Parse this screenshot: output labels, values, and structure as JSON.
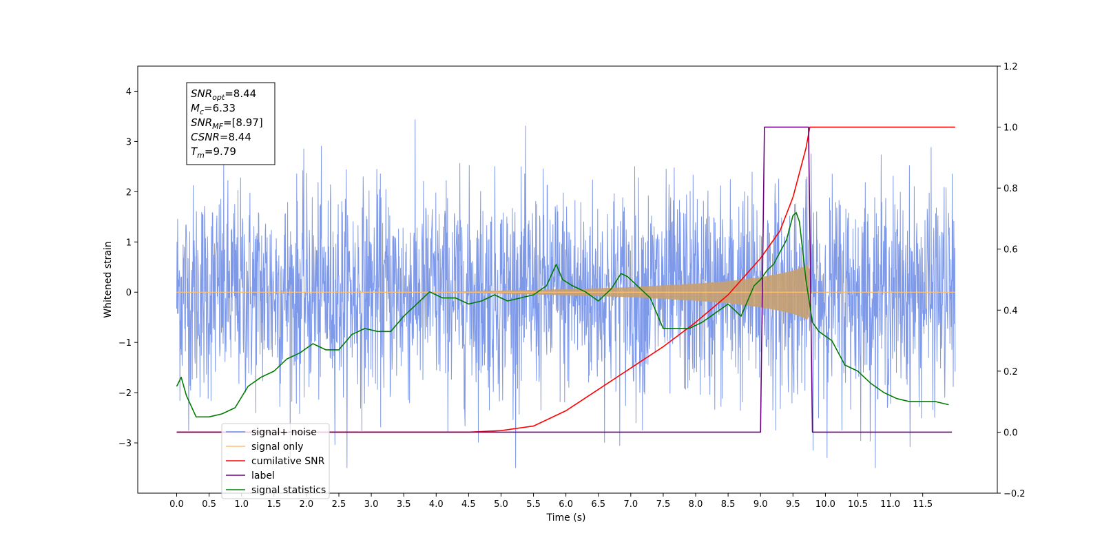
{
  "chart_data": {
    "type": "line",
    "xlabel": "Time (s)",
    "ylabel": "Whitened strain",
    "x_tick_labels": [
      "0.0",
      "0.5",
      "1.0",
      "1.5",
      "2.0",
      "2.5",
      "3.0",
      "3.5",
      "4.0",
      "4.5",
      "5.0",
      "5.5",
      "6.0",
      "6.5",
      "7.0",
      "7.5",
      "8.0",
      "8.5",
      "9.0",
      "9.5",
      "10.0",
      "10.5",
      "11.0",
      "11.5"
    ],
    "y_left_tick_labels": [
      "−3",
      "−2",
      "−1",
      "0",
      "1",
      "2",
      "3",
      "4"
    ],
    "y_right_tick_labels": [
      "−0.2",
      "0.0",
      "0.2",
      "0.4",
      "0.6",
      "0.8",
      "1.0",
      "1.2"
    ],
    "xlim": [
      -0.6,
      12.65
    ],
    "ylim_left": [
      -4.0,
      4.5
    ],
    "ylim_right": [
      -0.2,
      1.2
    ],
    "info_box": [
      {
        "main": "SNR",
        "sub": "opt",
        "value": "=8.44"
      },
      {
        "main": "M",
        "sub": "c",
        "value": "=6.33"
      },
      {
        "main": "SNR",
        "sub": "MF",
        "value": "=[8.97]"
      },
      {
        "main": "CSNR",
        "sub": "",
        "value": "=8.44"
      },
      {
        "main": "T",
        "sub": "m",
        "value": "=9.79"
      }
    ],
    "legend_placement": "lower-left",
    "legend": [
      {
        "name": "signal+ noise",
        "color": "#6f8ee6"
      },
      {
        "name": "signal only",
        "color": "#ffbf70"
      },
      {
        "name": "cumilative SNR",
        "color": "#ff0000"
      },
      {
        "name": "label",
        "color": "#6a0080"
      },
      {
        "name": "signal statistics",
        "color": "#008000"
      }
    ],
    "series": [
      {
        "name": "signal+ noise",
        "axis": "left",
        "color": "#7893e8",
        "x_range": [
          0.0,
          12.0
        ],
        "envelope_y": [
          -3.5,
          4.1
        ],
        "max_value": 4.1,
        "min_value": -3.5
      },
      {
        "name": "signal only",
        "axis": "left",
        "color": "#c8a070",
        "x": [
          0.0,
          2.0,
          4.0,
          5.0,
          6.0,
          7.0,
          8.0,
          8.5,
          9.0,
          9.3,
          9.5,
          9.65,
          9.72,
          9.76,
          9.78,
          12.0
        ],
        "amplitude": [
          0.0,
          0.002,
          0.01,
          0.03,
          0.06,
          0.1,
          0.17,
          0.22,
          0.3,
          0.37,
          0.43,
          0.5,
          0.55,
          0.45,
          0.0,
          0.0
        ]
      },
      {
        "name": "cumilative SNR",
        "axis": "right",
        "color": "#ff0000",
        "x": [
          0.0,
          4.5,
          5.0,
          5.5,
          6.0,
          6.5,
          7.0,
          7.5,
          8.0,
          8.5,
          9.0,
          9.3,
          9.5,
          9.7,
          9.76,
          9.8,
          12.0
        ],
        "values": [
          0.0,
          0.0,
          0.005,
          0.02,
          0.07,
          0.14,
          0.21,
          0.28,
          0.36,
          0.45,
          0.57,
          0.66,
          0.77,
          0.93,
          1.0,
          1.0,
          1.0
        ]
      },
      {
        "name": "label",
        "axis": "right",
        "color": "#6a0080",
        "x": [
          0.0,
          9.0,
          9.06,
          9.74,
          9.8,
          11.95
        ],
        "values": [
          0.0,
          0.0,
          1.0,
          1.0,
          0.0,
          0.0
        ]
      },
      {
        "name": "signal statistics",
        "axis": "right",
        "color": "#007a00",
        "x": [
          0.0,
          0.07,
          0.15,
          0.3,
          0.5,
          0.7,
          0.9,
          1.1,
          1.3,
          1.5,
          1.7,
          1.9,
          2.1,
          2.3,
          2.5,
          2.7,
          2.9,
          3.1,
          3.3,
          3.5,
          3.7,
          3.9,
          4.1,
          4.3,
          4.5,
          4.7,
          4.9,
          5.1,
          5.3,
          5.5,
          5.7,
          5.85,
          5.95,
          6.1,
          6.3,
          6.5,
          6.7,
          6.85,
          6.95,
          7.1,
          7.3,
          7.5,
          7.7,
          7.9,
          8.1,
          8.3,
          8.5,
          8.7,
          8.9,
          9.0,
          9.1,
          9.2,
          9.3,
          9.4,
          9.5,
          9.55,
          9.6,
          9.7,
          9.8,
          9.9,
          10.1,
          10.3,
          10.5,
          10.7,
          10.9,
          11.1,
          11.3,
          11.5,
          11.7,
          11.9
        ],
        "values": [
          0.15,
          0.18,
          0.12,
          0.05,
          0.05,
          0.06,
          0.08,
          0.15,
          0.18,
          0.2,
          0.24,
          0.26,
          0.29,
          0.27,
          0.27,
          0.32,
          0.34,
          0.33,
          0.33,
          0.38,
          0.42,
          0.46,
          0.44,
          0.44,
          0.42,
          0.43,
          0.45,
          0.43,
          0.44,
          0.45,
          0.48,
          0.55,
          0.5,
          0.48,
          0.46,
          0.43,
          0.47,
          0.52,
          0.51,
          0.48,
          0.44,
          0.34,
          0.34,
          0.34,
          0.36,
          0.39,
          0.42,
          0.38,
          0.48,
          0.5,
          0.53,
          0.55,
          0.59,
          0.63,
          0.71,
          0.72,
          0.69,
          0.5,
          0.36,
          0.33,
          0.3,
          0.22,
          0.2,
          0.16,
          0.13,
          0.11,
          0.1,
          0.1,
          0.1,
          0.09
        ]
      }
    ]
  }
}
